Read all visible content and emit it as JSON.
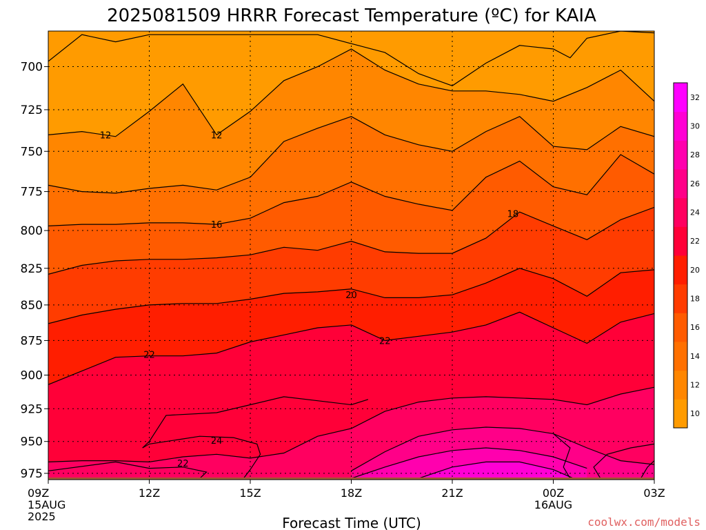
{
  "chart_data": {
    "type": "heatmap",
    "title": "2025081509 HRRR Forecast Temperature (ºC) for KAIA",
    "xlabel": "Forecast Time (UTC)",
    "ylabel": "",
    "x_ticks": [
      {
        "hour": 0,
        "label": "09Z",
        "sub": [
          "15AUG",
          "2025"
        ]
      },
      {
        "hour": 3,
        "label": "12Z",
        "sub": []
      },
      {
        "hour": 6,
        "label": "15Z",
        "sub": []
      },
      {
        "hour": 9,
        "label": "18Z",
        "sub": []
      },
      {
        "hour": 12,
        "label": "21Z",
        "sub": []
      },
      {
        "hour": 15,
        "label": "00Z",
        "sub": [
          "16AUG"
        ]
      },
      {
        "hour": 18,
        "label": "03Z",
        "sub": []
      }
    ],
    "xlim": [
      0,
      18
    ],
    "y_ticks": [
      700,
      725,
      750,
      775,
      800,
      825,
      850,
      875,
      900,
      925,
      950,
      975
    ],
    "ylim": [
      680,
      980
    ],
    "y_scale": "log-pressure",
    "grid": "dotted",
    "ground_pressure": 975,
    "colorbar": {
      "levels": [
        10,
        12,
        14,
        16,
        18,
        20,
        22,
        24,
        26,
        28,
        30,
        32
      ],
      "colors": [
        "#ff9b00",
        "#ff8600",
        "#ff7000",
        "#ff5b00",
        "#ff3c00",
        "#ff1e00",
        "#ff0038",
        "#ff0060",
        "#ff0088",
        "#ff00ae",
        "#ff00d4",
        "#ff00ff"
      ]
    },
    "contour_labels": [
      {
        "text": "12",
        "hour": 1.7,
        "p": 740
      },
      {
        "text": "12",
        "hour": 5.0,
        "p": 740
      },
      {
        "text": "16",
        "hour": 5.0,
        "p": 796
      },
      {
        "text": "18",
        "hour": 13.8,
        "p": 789
      },
      {
        "text": "20",
        "hour": 9.0,
        "p": 843
      },
      {
        "text": "22",
        "hour": 3.0,
        "p": 885
      },
      {
        "text": "22",
        "hour": 10.0,
        "p": 875
      },
      {
        "text": "24",
        "hour": 5.0,
        "p": 949
      },
      {
        "text": "22",
        "hour": 4.0,
        "p": 967
      }
    ],
    "contours": [
      {
        "level": 10,
        "pts": [
          [
            0,
            697
          ],
          [
            1,
            682
          ],
          [
            2,
            686
          ],
          [
            3,
            682
          ],
          [
            4,
            682
          ],
          [
            5,
            682
          ],
          [
            6,
            682
          ],
          [
            7,
            682
          ],
          [
            8,
            682
          ],
          [
            9,
            687
          ],
          [
            10,
            692
          ],
          [
            11,
            704
          ],
          [
            12,
            711
          ],
          [
            13,
            698
          ],
          [
            14,
            688
          ],
          [
            15,
            690
          ],
          [
            15.5,
            695
          ],
          [
            16,
            684
          ],
          [
            17,
            680
          ],
          [
            18,
            681
          ]
        ]
      },
      {
        "level": 12,
        "pts": [
          [
            0,
            740
          ],
          [
            1,
            738
          ],
          [
            2,
            741
          ],
          [
            3,
            726
          ],
          [
            4,
            710
          ],
          [
            5,
            740
          ],
          [
            6,
            726
          ],
          [
            7,
            708
          ],
          [
            8,
            700
          ],
          [
            9,
            690
          ],
          [
            10,
            702
          ],
          [
            11,
            710
          ],
          [
            12,
            714
          ],
          [
            13,
            714
          ],
          [
            14,
            716
          ],
          [
            15,
            720
          ],
          [
            16,
            712
          ],
          [
            17,
            702
          ],
          [
            18,
            720
          ]
        ]
      },
      {
        "level": 14,
        "pts": [
          [
            0,
            771
          ],
          [
            1,
            775
          ],
          [
            2,
            776
          ],
          [
            3,
            773
          ],
          [
            4,
            771
          ],
          [
            5,
            774
          ],
          [
            6,
            766
          ],
          [
            7,
            744
          ],
          [
            8,
            736
          ],
          [
            9,
            729
          ],
          [
            10,
            740
          ],
          [
            11,
            746
          ],
          [
            12,
            750
          ],
          [
            13,
            738
          ],
          [
            14,
            729
          ],
          [
            15,
            747
          ],
          [
            16,
            749
          ],
          [
            17,
            735
          ],
          [
            18,
            741
          ]
        ]
      },
      {
        "level": 16,
        "pts": [
          [
            0,
            797
          ],
          [
            1,
            796
          ],
          [
            2,
            796
          ],
          [
            3,
            795
          ],
          [
            4,
            795
          ],
          [
            5,
            796
          ],
          [
            6,
            792
          ],
          [
            7,
            782
          ],
          [
            8,
            778
          ],
          [
            9,
            769
          ],
          [
            10,
            778
          ],
          [
            11,
            783
          ],
          [
            12,
            787
          ],
          [
            13,
            766
          ],
          [
            14,
            756
          ],
          [
            15,
            772
          ],
          [
            16,
            777
          ],
          [
            17,
            752
          ],
          [
            18,
            764
          ]
        ]
      },
      {
        "level": 18,
        "pts": [
          [
            0,
            829
          ],
          [
            1,
            823
          ],
          [
            2,
            820
          ],
          [
            3,
            819
          ],
          [
            4,
            819
          ],
          [
            5,
            818
          ],
          [
            6,
            816
          ],
          [
            7,
            811
          ],
          [
            8,
            813
          ],
          [
            9,
            807
          ],
          [
            10,
            814
          ],
          [
            11,
            815
          ],
          [
            12,
            815
          ],
          [
            13,
            805
          ],
          [
            14,
            788
          ],
          [
            15,
            797
          ],
          [
            16,
            806
          ],
          [
            17,
            793
          ],
          [
            18,
            785
          ]
        ]
      },
      {
        "level": 20,
        "pts": [
          [
            0,
            863
          ],
          [
            1,
            857
          ],
          [
            2,
            853
          ],
          [
            3,
            850
          ],
          [
            4,
            849
          ],
          [
            5,
            849
          ],
          [
            6,
            846
          ],
          [
            7,
            842
          ],
          [
            8,
            841
          ],
          [
            9,
            839
          ],
          [
            10,
            845
          ],
          [
            11,
            845
          ],
          [
            12,
            843
          ],
          [
            13,
            835
          ],
          [
            14,
            825
          ],
          [
            15,
            832
          ],
          [
            16,
            844
          ],
          [
            17,
            828
          ],
          [
            18,
            826
          ]
        ]
      },
      {
        "level": 22,
        "pts": [
          [
            0,
            907
          ],
          [
            1,
            897
          ],
          [
            2,
            887
          ],
          [
            3,
            886
          ],
          [
            4,
            886
          ],
          [
            5,
            884
          ],
          [
            6,
            876
          ],
          [
            7,
            871
          ],
          [
            8,
            866
          ],
          [
            9,
            864
          ],
          [
            10,
            875
          ],
          [
            11,
            872
          ],
          [
            12,
            869
          ],
          [
            13,
            864
          ],
          [
            14,
            855
          ],
          [
            15,
            866
          ],
          [
            16,
            877
          ],
          [
            17,
            862
          ],
          [
            18,
            856
          ]
        ]
      },
      {
        "level": 24,
        "pts": [
          [
            0,
            966
          ],
          [
            1,
            965
          ],
          [
            2,
            965
          ],
          [
            3,
            966
          ],
          [
            4,
            962
          ],
          [
            5,
            960
          ],
          [
            6,
            963
          ],
          [
            7,
            959
          ],
          [
            8,
            946
          ],
          [
            9,
            940
          ],
          [
            10,
            927
          ],
          [
            11,
            920
          ],
          [
            12,
            917
          ],
          [
            13,
            916
          ],
          [
            14,
            917
          ],
          [
            15,
            918
          ],
          [
            16,
            922
          ],
          [
            17,
            914
          ],
          [
            18,
            909
          ]
        ]
      },
      {
        "level": 26,
        "pts": [
          [
            9,
            973
          ],
          [
            10,
            958
          ],
          [
            11,
            946
          ],
          [
            12,
            941
          ],
          [
            13,
            939
          ],
          [
            14,
            940
          ],
          [
            15,
            944
          ],
          [
            16,
            955
          ],
          [
            17,
            965
          ],
          [
            18,
            968
          ]
        ]
      },
      {
        "level": 28,
        "pts": [
          [
            9,
            979
          ],
          [
            10,
            970
          ],
          [
            11,
            962
          ],
          [
            12,
            957
          ],
          [
            13,
            955
          ],
          [
            14,
            957
          ],
          [
            15,
            962
          ],
          [
            16,
            971
          ]
        ]
      },
      {
        "level": 30,
        "pts": [
          [
            11,
            979
          ],
          [
            12,
            970
          ],
          [
            13,
            966
          ],
          [
            14,
            966
          ],
          [
            15,
            972
          ],
          [
            15.6,
            979
          ]
        ]
      }
    ],
    "extra_contours": [
      {
        "level": 24,
        "pts": [
          [
            2.8,
            955
          ],
          [
            3,
            950
          ],
          [
            3.5,
            930
          ],
          [
            5,
            928
          ],
          [
            6,
            922
          ],
          [
            7,
            916
          ],
          [
            8,
            919
          ],
          [
            9,
            922
          ],
          [
            9.5,
            918
          ]
        ]
      },
      {
        "level": 22,
        "pts": [
          [
            0,
            973
          ],
          [
            2,
            966
          ],
          [
            3,
            971
          ],
          [
            4,
            970
          ],
          [
            4.7,
            974
          ],
          [
            4.5,
            979
          ]
        ]
      },
      {
        "level": 22,
        "pts": [
          [
            5.8,
            979
          ],
          [
            6,
            972
          ],
          [
            6.3,
            960
          ],
          [
            6.2,
            952
          ],
          [
            5.5,
            947
          ],
          [
            4.5,
            946
          ],
          [
            4,
            948
          ],
          [
            3,
            952
          ],
          [
            2.8,
            955
          ]
        ]
      },
      {
        "level": 24,
        "pts": [
          [
            16.4,
            979
          ],
          [
            16.2,
            970
          ],
          [
            16.6,
            960
          ],
          [
            17.3,
            955
          ],
          [
            18,
            952
          ]
        ]
      },
      {
        "level": 24,
        "pts": [
          [
            15.5,
            979
          ],
          [
            15.3,
            970
          ],
          [
            15.5,
            955
          ],
          [
            15,
            944
          ]
        ]
      },
      {
        "level": 24,
        "pts": [
          [
            17.6,
            979
          ],
          [
            17.8,
            970
          ],
          [
            18,
            965
          ]
        ]
      }
    ]
  },
  "credit": "coolwx.com/models"
}
